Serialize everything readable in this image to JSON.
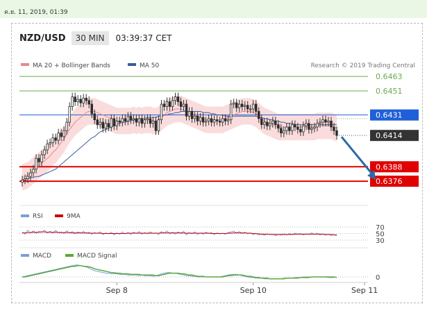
{
  "datestamp": "ค.ย. 11, 2019, 01:39",
  "header": {
    "pair": "NZD/USD",
    "timeframe": "30 MIN",
    "time": "03:39:37 CET"
  },
  "legend": {
    "bands": "MA 20 + Bollinger Bands",
    "ma50": "MA 50",
    "research": "Research © 2019 Trading Central"
  },
  "rsi_legend": {
    "rsi": "RSI",
    "ma": "9MA"
  },
  "macd_legend": {
    "macd": "MACD",
    "signal": "MACD Signal"
  },
  "colors": {
    "support": "#e00000",
    "pivot": "#1f5fd8",
    "resistance": "#6aa84f",
    "bands": "#f7c5c5",
    "ma20": "#e88888",
    "ma50": "#3b5b9c",
    "up": "#2a2a2a",
    "down": "#2a2a2a",
    "arrow": "#2b6aa8"
  },
  "chart_data": {
    "type": "candlestick",
    "ylim": [
      0.6368,
      0.647
    ],
    "x_labels": [
      {
        "label": "Sep 8",
        "index": 34
      },
      {
        "label": "Sep 10",
        "index": 83
      },
      {
        "label": "Sep 11",
        "index": 123
      }
    ],
    "levels": [
      {
        "value": 0.6463,
        "label": "0.6463",
        "kind": "resistance"
      },
      {
        "value": 0.6451,
        "label": "0.6451",
        "kind": "resistance"
      },
      {
        "value": 0.6431,
        "label": "0.6431",
        "kind": "pivot"
      },
      {
        "value": 0.6414,
        "label": "0.6414",
        "kind": "last"
      },
      {
        "value": 0.6388,
        "label": "0.6388",
        "kind": "support"
      },
      {
        "value": 0.6376,
        "label": "0.6376",
        "kind": "support"
      }
    ],
    "close": [
      0.6377,
      0.6378,
      0.638,
      0.6383,
      0.6386,
      0.6395,
      0.6392,
      0.6398,
      0.6402,
      0.6407,
      0.6408,
      0.6412,
      0.641,
      0.6416,
      0.6413,
      0.6418,
      0.6425,
      0.6438,
      0.6446,
      0.6442,
      0.6444,
      0.6441,
      0.6445,
      0.6443,
      0.644,
      0.6432,
      0.6427,
      0.6423,
      0.6425,
      0.642,
      0.6424,
      0.6421,
      0.6428,
      0.6422,
      0.6426,
      0.6425,
      0.6428,
      0.6426,
      0.643,
      0.6427,
      0.6428,
      0.6425,
      0.6428,
      0.6424,
      0.6427,
      0.6428,
      0.6424,
      0.6426,
      0.6418,
      0.6427,
      0.644,
      0.6438,
      0.6442,
      0.6438,
      0.6443,
      0.6446,
      0.6442,
      0.6438,
      0.644,
      0.643,
      0.6434,
      0.6428,
      0.643,
      0.6426,
      0.6429,
      0.6425,
      0.6426,
      0.6428,
      0.6425,
      0.6427,
      0.6426,
      0.6425,
      0.6428,
      0.6426,
      0.6427,
      0.644,
      0.6441,
      0.6437,
      0.644,
      0.6438,
      0.6439,
      0.6436,
      0.6436,
      0.644,
      0.6434,
      0.6428,
      0.6423,
      0.6425,
      0.6422,
      0.6424,
      0.6426,
      0.6423,
      0.642,
      0.6416,
      0.6418,
      0.6421,
      0.6418,
      0.6423,
      0.6421,
      0.6419,
      0.6417,
      0.6422,
      0.6424,
      0.6419,
      0.642,
      0.6421,
      0.6424,
      0.6425,
      0.6427,
      0.6425,
      0.6426,
      0.6421,
      0.6418,
      0.6414
    ],
    "ma20": [
      0.6379,
      0.638,
      0.6381,
      0.6383,
      0.6385,
      0.6387,
      0.6389,
      0.6391,
      0.6393,
      0.6395,
      0.6397,
      0.64,
      0.6402,
      0.6405,
      0.6408,
      0.6411,
      0.6415,
      0.6419,
      0.6422,
      0.6425,
      0.6427,
      0.6429,
      0.6431,
      0.6433,
      0.6434,
      0.6434,
      0.6434,
      0.6433,
      0.6432,
      0.6431,
      0.643,
      0.6429,
      0.6428,
      0.6427,
      0.6426,
      0.6426,
      0.6426,
      0.6426,
      0.6426,
      0.6426,
      0.6427,
      0.6426,
      0.6427,
      0.6426,
      0.6427,
      0.6427,
      0.6427,
      0.6426,
      0.6426,
      0.6427,
      0.6429,
      0.6431,
      0.6433,
      0.6434,
      0.6435,
      0.6436,
      0.6436,
      0.6436,
      0.6435,
      0.6434,
      0.6433,
      0.6432,
      0.6431,
      0.643,
      0.6429,
      0.6428,
      0.6427,
      0.6427,
      0.6427,
      0.6427,
      0.6427,
      0.6427,
      0.6427,
      0.6428,
      0.6429,
      0.643,
      0.6431,
      0.6432,
      0.6433,
      0.6434,
      0.6434,
      0.6434,
      0.6434,
      0.6433,
      0.6432,
      0.643,
      0.6428,
      0.6426,
      0.6425,
      0.6424,
      0.6423,
      0.6422,
      0.6421,
      0.6421,
      0.6421,
      0.6421,
      0.6421,
      0.6421,
      0.6421,
      0.6421,
      0.6421,
      0.6421,
      0.6421,
      0.6421,
      0.6421,
      0.6421,
      0.6422,
      0.6422,
      0.6422,
      0.6422,
      0.6422,
      0.6422,
      0.6421,
      0.642
    ],
    "ma50": [
      0.6377,
      0.6378,
      0.6378,
      0.6379,
      0.6379,
      0.638,
      0.638,
      0.6381,
      0.6382,
      0.6383,
      0.6384,
      0.6385,
      0.6386,
      0.6388,
      0.639,
      0.6392,
      0.6394,
      0.6396,
      0.6398,
      0.64,
      0.6402,
      0.6404,
      0.6406,
      0.6408,
      0.641,
      0.6412,
      0.6413,
      0.6415,
      0.6417,
      0.6418,
      0.6419,
      0.642,
      0.6421,
      0.6422,
      0.6423,
      0.6424,
      0.6425,
      0.6425,
      0.6426,
      0.6426,
      0.6427,
      0.6427,
      0.6428,
      0.6428,
      0.6428,
      0.6429,
      0.6429,
      0.6429,
      0.6429,
      0.643,
      0.643,
      0.6431,
      0.6431,
      0.6432,
      0.6432,
      0.6433,
      0.6433,
      0.6434,
      0.6434,
      0.6434,
      0.6434,
      0.6434,
      0.6434,
      0.6434,
      0.6434,
      0.6433,
      0.6433,
      0.6433,
      0.6432,
      0.6432,
      0.6431,
      0.6431,
      0.6431,
      0.643,
      0.643,
      0.643,
      0.643,
      0.643,
      0.643,
      0.643,
      0.643,
      0.643,
      0.643,
      0.643,
      0.643,
      0.6429,
      0.6429,
      0.6428,
      0.6428,
      0.6427,
      0.6427,
      0.6426,
      0.6426,
      0.6425,
      0.6425,
      0.6424,
      0.6424,
      0.6424,
      0.6423,
      0.6423,
      0.6423,
      0.6423,
      0.6423,
      0.6423,
      0.6423,
      0.6423,
      0.6423,
      0.6423,
      0.6423,
      0.6423,
      0.6423,
      0.6423,
      0.6423,
      0.6423
    ],
    "band_width": 0.0011,
    "forecast": {
      "from_index": 114,
      "from_value": 0.6414,
      "to_index": 127,
      "to_value": 0.6376
    },
    "rsi_axis": [
      70,
      50,
      30
    ],
    "rsi": [
      55,
      48,
      60,
      52,
      58,
      50,
      56,
      54,
      60,
      52,
      57,
      51,
      59,
      53,
      55,
      50,
      58,
      52,
      56,
      49,
      55,
      51,
      57,
      50,
      54,
      48,
      53,
      50,
      55,
      47,
      52,
      49,
      54,
      46,
      52,
      48,
      55,
      49,
      53,
      47,
      54,
      50,
      56,
      48,
      53,
      49,
      55,
      50,
      52,
      47,
      56,
      51,
      58,
      49,
      54,
      48,
      55,
      50,
      57,
      46,
      53,
      49,
      55,
      47,
      52,
      48,
      54,
      50,
      53,
      47,
      52,
      49,
      51,
      48,
      53,
      55,
      57,
      52,
      56,
      50,
      54,
      49,
      52,
      47,
      50,
      46,
      48,
      45,
      49,
      47,
      48,
      44,
      47,
      45,
      49,
      46,
      50,
      47,
      51,
      48,
      50,
      46,
      49,
      47,
      52,
      48,
      51,
      46,
      49,
      45,
      48,
      44,
      47,
      43
    ],
    "rsi_ma": [
      52,
      52,
      53,
      53,
      54,
      54,
      54,
      55,
      55,
      54,
      54,
      54,
      54,
      53,
      53,
      53,
      53,
      53,
      52,
      52,
      52,
      52,
      52,
      52,
      51,
      51,
      51,
      51,
      51,
      50,
      50,
      50,
      50,
      50,
      50,
      50,
      50,
      50,
      51,
      51,
      51,
      51,
      51,
      51,
      51,
      51,
      51,
      51,
      51,
      51,
      52,
      52,
      52,
      52,
      52,
      52,
      52,
      52,
      52,
      51,
      51,
      51,
      51,
      51,
      51,
      51,
      51,
      51,
      50,
      50,
      50,
      50,
      50,
      50,
      51,
      51,
      52,
      52,
      52,
      52,
      52,
      51,
      51,
      50,
      50,
      49,
      48,
      48,
      48,
      47,
      47,
      47,
      47,
      47,
      47,
      47,
      47,
      47,
      48,
      48,
      48,
      48,
      48,
      48,
      48,
      48,
      48,
      48,
      48,
      47,
      47,
      47,
      46,
      46
    ],
    "macd_axis": [
      0
    ],
    "macd": [
      0.0,
      0.0001,
      0.0002,
      0.0003,
      0.0004,
      0.0005,
      0.0006,
      0.0007,
      0.0008,
      0.0009,
      0.001,
      0.0011,
      0.0012,
      0.0013,
      0.0014,
      0.0015,
      0.0016,
      0.0017,
      0.0018,
      0.0019,
      0.0019,
      0.0018,
      0.0017,
      0.0016,
      0.0014,
      0.0012,
      0.001,
      0.0009,
      0.0008,
      0.0007,
      0.0006,
      0.0006,
      0.0005,
      0.0005,
      0.0005,
      0.0004,
      0.0004,
      0.0004,
      0.0003,
      0.0003,
      0.0003,
      0.0003,
      0.0002,
      0.0003,
      0.0002,
      0.0002,
      0.0002,
      0.0001,
      0.0002,
      0.0003,
      0.0005,
      0.0006,
      0.0007,
      0.0007,
      0.0006,
      0.0006,
      0.0005,
      0.0004,
      0.0003,
      0.0002,
      0.0002,
      0.0001,
      0.0001,
      0.0,
      0.0,
      0.0,
      0.0,
      0.0,
      0.0,
      0.0,
      0.0,
      0.0,
      0.0001,
      0.0002,
      0.0003,
      0.0004,
      0.0004,
      0.0004,
      0.0003,
      0.0002,
      0.0001,
      0.0,
      -0.0001,
      -0.0001,
      -0.0002,
      -0.0002,
      -0.0002,
      -0.0003,
      -0.0003,
      -0.0003,
      -0.0003,
      -0.0003,
      -0.0003,
      -0.0003,
      -0.0002,
      -0.0002,
      -0.0002,
      -0.0002,
      -0.0001,
      -0.0001,
      -0.0001,
      0.0,
      0.0,
      0.0,
      0.0,
      0.0,
      0.0,
      0.0,
      0.0,
      0.0,
      -0.0001,
      -0.0001,
      -0.0001
    ],
    "macd_signal": [
      0.0,
      0.0,
      0.0001,
      0.0002,
      0.0003,
      0.0004,
      0.0005,
      0.0006,
      0.0007,
      0.0008,
      0.0009,
      0.001,
      0.0011,
      0.0012,
      0.0013,
      0.0014,
      0.0015,
      0.0016,
      0.0017,
      0.0017,
      0.0018,
      0.0018,
      0.0017,
      0.0017,
      0.0016,
      0.0015,
      0.0013,
      0.0012,
      0.0011,
      0.001,
      0.0009,
      0.0008,
      0.0007,
      0.0007,
      0.0006,
      0.0006,
      0.0005,
      0.0005,
      0.0005,
      0.0004,
      0.0004,
      0.0004,
      0.0004,
      0.0003,
      0.0003,
      0.0003,
      0.0003,
      0.0003,
      0.0002,
      0.0002,
      0.0003,
      0.0004,
      0.0005,
      0.0006,
      0.0006,
      0.0006,
      0.0006,
      0.0005,
      0.0005,
      0.0004,
      0.0003,
      0.0003,
      0.0002,
      0.0001,
      0.0001,
      0.0001,
      0.0,
      0.0,
      0.0,
      0.0,
      0.0,
      0.0,
      0.0,
      0.0001,
      0.0002,
      0.0002,
      0.0003,
      0.0003,
      0.0003,
      0.0003,
      0.0002,
      0.0001,
      0.0001,
      0.0,
      -0.0001,
      -0.0001,
      -0.0002,
      -0.0002,
      -0.0002,
      -0.0003,
      -0.0003,
      -0.0003,
      -0.0003,
      -0.0003,
      -0.0003,
      -0.0002,
      -0.0002,
      -0.0002,
      -0.0002,
      -0.0002,
      -0.0001,
      -0.0001,
      -0.0001,
      -0.0001,
      0.0,
      0.0,
      0.0,
      0.0,
      0.0,
      0.0,
      0.0,
      0.0,
      0.0,
      -0.0001
    ]
  }
}
